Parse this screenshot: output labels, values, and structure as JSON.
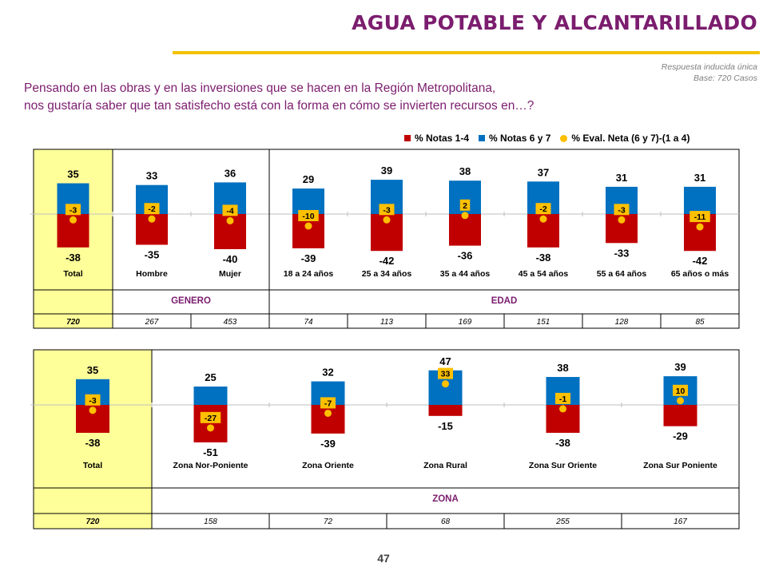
{
  "title": "AGUA POTABLE Y ALCANTARILLADO",
  "note_line1": "Respuesta inducida única",
  "note_line2": "Base: 720 Casos",
  "question_line1": "Pensando en las obras y en las inversiones que se hacen en la Región Metropolitana,",
  "question_line2": "nos gustaría saber que tan satisfecho está con la forma en cómo se invierten recursos en…?",
  "legend": {
    "notas_1_4": "% Notas 1-4",
    "notas_6_7": "% Notas 6 y 7",
    "eval_neta": "% Eval. Neta (6 y 7)-(1 a 4)"
  },
  "colors": {
    "red": "#c00000",
    "blue": "#0070c0",
    "yellow": "#ffc000",
    "highlight": "#ffff99",
    "purple": "#7b1d6e"
  },
  "page_number": "47",
  "chart_data": [
    {
      "type": "bar",
      "categories": [
        "Total",
        "Hombre",
        "Mujer",
        "18 a 24 años",
        "25 a 34 años",
        "35 a 44 años",
        "45 a 54 años",
        "55 a 64 años",
        "65 años o más"
      ],
      "series": [
        {
          "name": "% Notas 1-4",
          "values": [
            -38,
            -35,
            -40,
            -39,
            -42,
            -36,
            -38,
            -33,
            -42
          ]
        },
        {
          "name": "% Notas 6 y 7",
          "values": [
            35,
            33,
            36,
            29,
            39,
            38,
            37,
            31,
            31
          ]
        },
        {
          "name": "% Eval. Neta (6 y 7)-(1 a 4)",
          "values": [
            -3,
            -2,
            -4,
            -10,
            -3,
            2,
            -2,
            -3,
            -11
          ]
        }
      ],
      "groups": [
        {
          "label": "",
          "span": 1
        },
        {
          "label": "GENERO",
          "span": 2
        },
        {
          "label": "EDAD",
          "span": 6
        }
      ],
      "bases": [
        "720",
        "267",
        "453",
        "74",
        "113",
        "169",
        "151",
        "128",
        "85"
      ]
    },
    {
      "type": "bar",
      "categories": [
        "Total",
        "Zona Nor-Poniente",
        "Zona Oriente",
        "Zona Rural",
        "Zona Sur Oriente",
        "Zona Sur Poniente"
      ],
      "series": [
        {
          "name": "% Notas 1-4",
          "values": [
            -38,
            -51,
            -39,
            -15,
            -38,
            -29
          ]
        },
        {
          "name": "% Notas 6 y 7",
          "values": [
            35,
            25,
            32,
            47,
            38,
            39
          ]
        },
        {
          "name": "% Eval. Neta (6 y 7)-(1 a 4)",
          "values": [
            -3,
            -27,
            -7,
            33,
            -1,
            10
          ]
        }
      ],
      "groups": [
        {
          "label": "",
          "span": 1
        },
        {
          "label": "ZONA",
          "span": 5
        }
      ],
      "bases": [
        "720",
        "158",
        "72",
        "68",
        "255",
        "167"
      ]
    }
  ]
}
